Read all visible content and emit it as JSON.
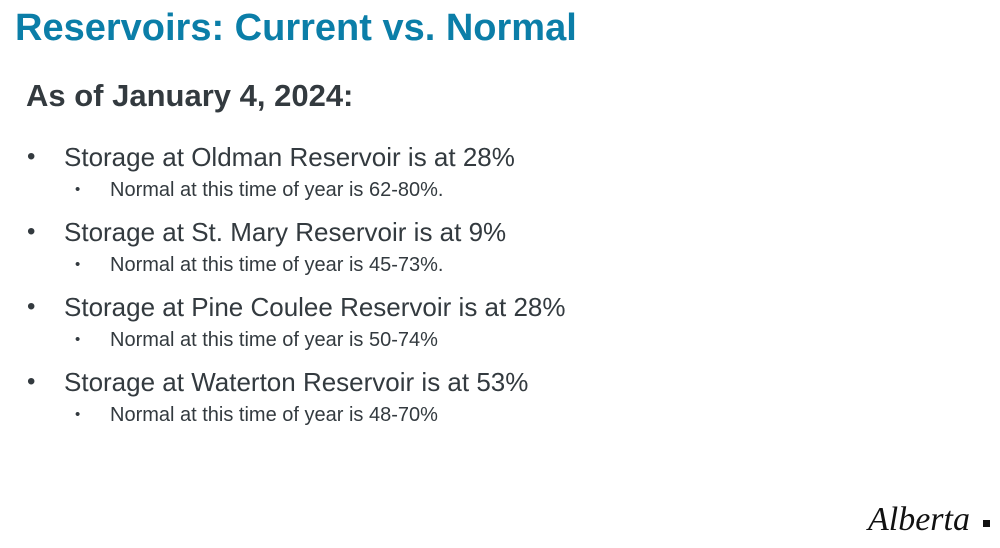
{
  "title": "Reservoirs: Current vs. Normal",
  "subtitle": "As of January 4, 2024:",
  "items": [
    {
      "text": "Storage at Oldman Reservoir is at 28%",
      "sub": "Normal at this time of year is 62-80%."
    },
    {
      "text": "Storage at St. Mary Reservoir is at 9%",
      "sub": "Normal at this time of year is 45-73%."
    },
    {
      "text": "Storage at Pine Coulee Reservoir is at 28%",
      "sub": "Normal at this time of year is 50-74%"
    },
    {
      "text": "Storage at Waterton Reservoir is at 53%",
      "sub": "Normal at this time of year is 48-70%"
    }
  ],
  "logo": "Alberta",
  "colors": {
    "title": "#0b7ea8",
    "text": "#333a3f",
    "background": "#ffffff"
  }
}
